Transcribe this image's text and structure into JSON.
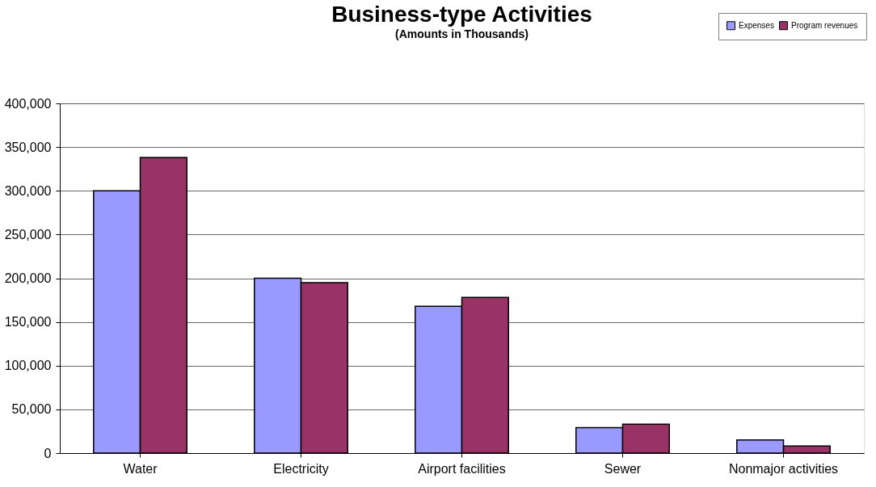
{
  "chart_data": {
    "type": "bar",
    "title": "Business-type Activities",
    "subtitle": "(Amounts in  Thousands)",
    "categories": [
      "Water",
      "Electricity",
      "Airport facilities",
      "Sewer",
      "Nonmajor activities"
    ],
    "series": [
      {
        "name": "Expenses",
        "color": "#9999ff",
        "values": [
          300000,
          200000,
          168000,
          29000,
          15000
        ]
      },
      {
        "name": "Program revenues",
        "color": "#993366",
        "values": [
          338000,
          195000,
          178000,
          33000,
          8000
        ]
      }
    ],
    "ylim": [
      0,
      400000
    ],
    "yticks": [
      0,
      {
        "value": 50000,
        "label": "50,000"
      },
      {
        "value": 100000,
        "label": "100,000"
      },
      {
        "value": 150000,
        "label": "150,000"
      },
      {
        "value": 200000,
        "label": "200,000"
      },
      {
        "value": 250000,
        "label": "250,000"
      },
      {
        "value": 300000,
        "label": "300,000"
      },
      {
        "value": 350000,
        "label": "350,000"
      },
      {
        "value": 400000,
        "label": "400,000"
      }
    ],
    "grid": "y",
    "legend": "top right"
  }
}
